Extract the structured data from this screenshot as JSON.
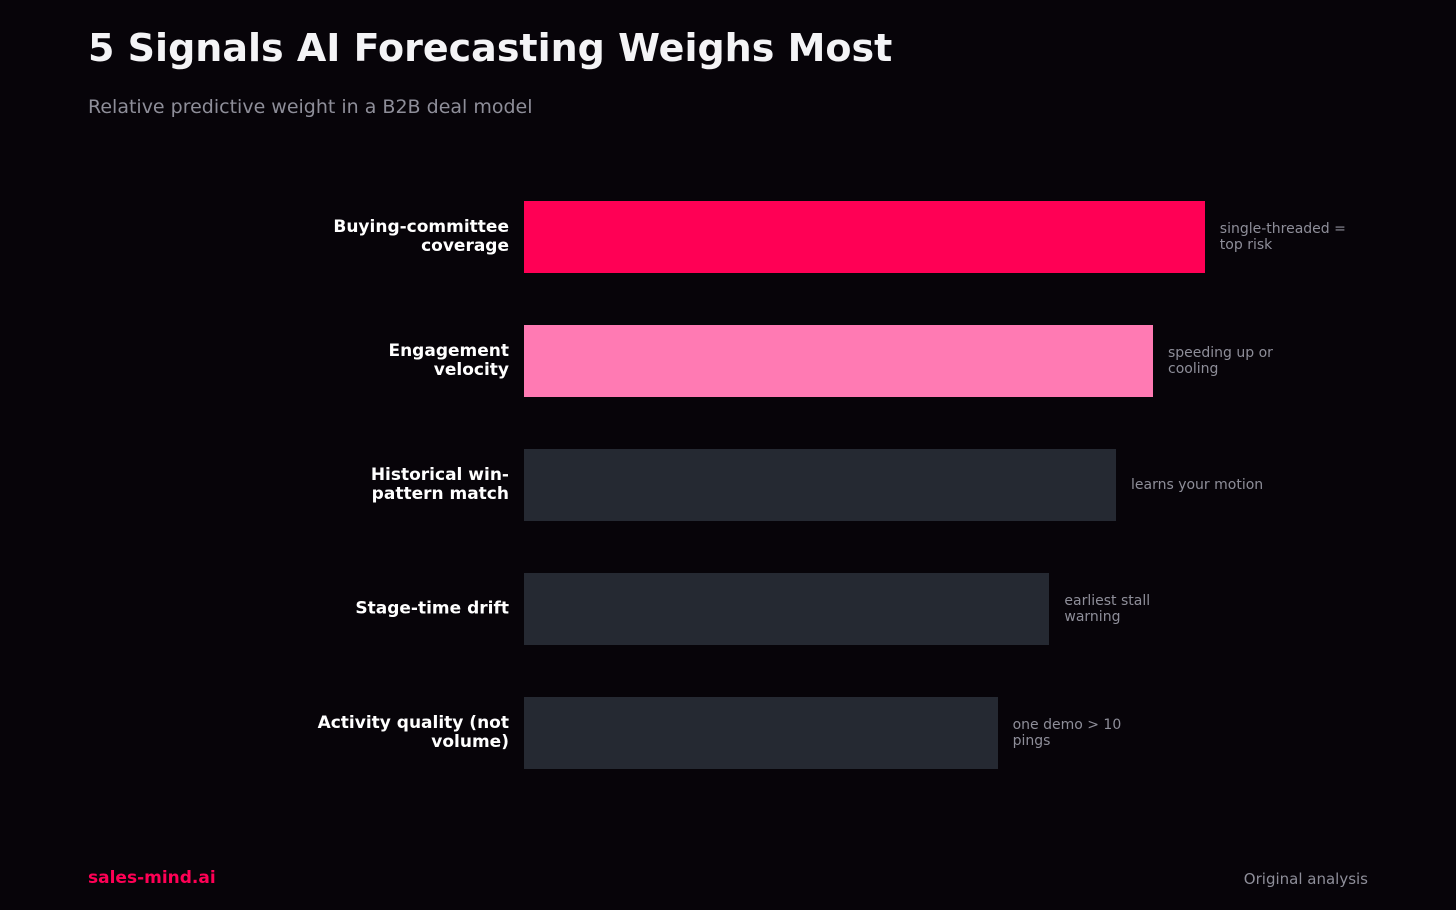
{
  "chart_data": {
    "type": "bar",
    "orientation": "horizontal",
    "title": "5 Signals AI Forecasting Weighs Most",
    "subtitle": "Relative predictive weight in a B2B deal model",
    "categories": [
      "Buying-committee coverage",
      "Engagement velocity",
      "Historical win-pattern match",
      "Stage-time drift",
      "Activity quality (not volume)"
    ],
    "values": [
      92,
      85,
      80,
      71,
      64
    ],
    "colors": [
      "#ff0055",
      "#ff7ab3",
      "#252932",
      "#252932",
      "#252932"
    ],
    "annotations": [
      "single-threaded = top risk",
      "speeding up or cooling",
      "learns your motion",
      "earliest stall warning",
      "one demo > 10 pings"
    ],
    "xlim": [
      0,
      100
    ],
    "footer": {
      "brand": "sales-mind.ai",
      "source": "Original analysis"
    }
  }
}
